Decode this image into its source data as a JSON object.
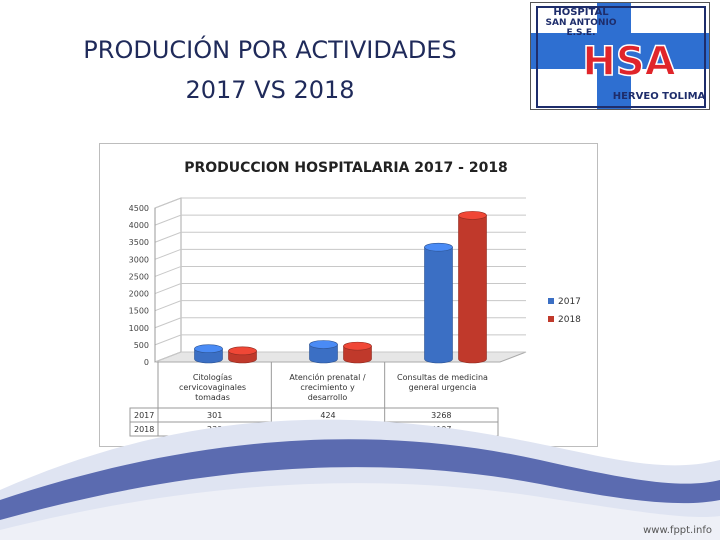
{
  "slide": {
    "title_line1": "PRODUCIÓN POR ACTIVIDADES",
    "title_line2": "2017 VS 2018"
  },
  "logo": {
    "line1": "HOSPITAL",
    "line2": "SAN ANTONIO",
    "line3": "E.S.E.",
    "monogram": "HSA",
    "location": "HERVEO TOLIMA",
    "colors": {
      "blue": "#2e6fd1",
      "red": "#e0252a",
      "navy": "#1e2d6b"
    }
  },
  "footer": {
    "url": "www.fppt.info"
  },
  "chart_data": {
    "type": "bar",
    "title": "PRODUCCION HOSPITALARIA 2017 - 2018",
    "categories": [
      [
        "Citologías",
        "cervicovaginales",
        "tomadas"
      ],
      [
        "Atención prenatal /",
        "crecimiento y",
        "desarrollo"
      ],
      [
        "Consultas de medicina",
        "general urgencia"
      ]
    ],
    "series": [
      {
        "name": "2017",
        "values": [
          301,
          424,
          3268
        ],
        "color": "#3b6fc4"
      },
      {
        "name": "2018",
        "values": [
          238,
          376,
          4197
        ],
        "color": "#c0392b"
      }
    ],
    "ylim": [
      0,
      4500
    ],
    "yticks": [
      0,
      500,
      1000,
      1500,
      2000,
      2500,
      3000,
      3500,
      4000,
      4500
    ],
    "grid": true,
    "legend": "right",
    "data_table": true
  }
}
